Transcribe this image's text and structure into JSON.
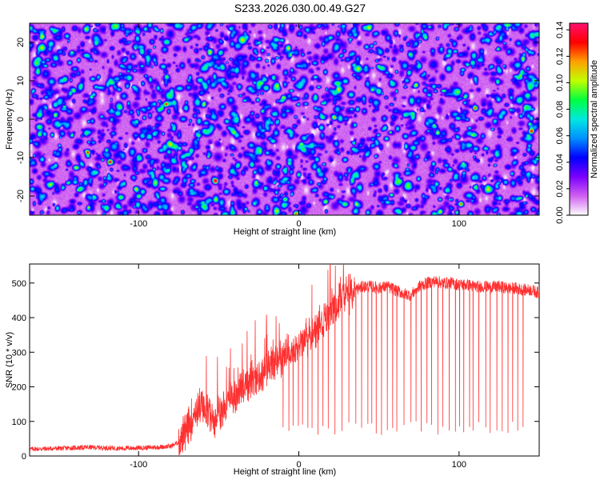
{
  "title": "S233.2026.030.00.49.G27",
  "chart_data": [
    {
      "type": "heatmap",
      "description_kind": "spectrogram",
      "xlabel": "Height of straight line (km)",
      "ylabel": "Frequency (Hz)",
      "xlim": [
        -168,
        150
      ],
      "ylim": [
        -25,
        25
      ],
      "xticks": [
        -100,
        0,
        100
      ],
      "xtick_labels": [
        "-100",
        "0",
        "100"
      ],
      "yticks": [
        -20,
        -10,
        0,
        10,
        20
      ],
      "ytick_labels": [
        "-20",
        "-10",
        "0",
        "10",
        "20"
      ],
      "colorbar": {
        "label": "Normalized spectral amplitude",
        "range": [
          0.0,
          0.145
        ],
        "ticks": [
          0.0,
          0.02,
          0.04,
          0.06,
          0.08,
          0.1,
          0.12,
          0.14
        ],
        "tick_labels": [
          "0.00",
          "0.02",
          "0.04",
          "0.06",
          "0.08",
          "0.10",
          "0.12",
          "0.14"
        ],
        "colors": [
          "#ffffff",
          "#d060f0",
          "#7a00ff",
          "#0000ff",
          "#0090ff",
          "#00e8e0",
          "#00ff40",
          "#c0ff00",
          "#ffa000",
          "#ff0000",
          "#ff1070"
        ]
      },
      "background_level": 0.02,
      "hot_spots": [
        {
          "x": -170,
          "y": 5,
          "v": 0.08
        },
        {
          "x": -165,
          "y": 23,
          "v": 0.06
        },
        {
          "x": -162,
          "y": -4,
          "v": 0.07
        },
        {
          "x": -132,
          "y": -8.5,
          "v": 0.12
        },
        {
          "x": -118,
          "y": -11,
          "v": 0.13
        },
        {
          "x": -100,
          "y": -20,
          "v": 0.09
        },
        {
          "x": -83,
          "y": 4,
          "v": 0.12
        },
        {
          "x": -52,
          "y": -16,
          "v": 0.13
        },
        {
          "x": -2,
          "y": -24.5,
          "v": 0.12
        },
        {
          "x": 22,
          "y": 0.5,
          "v": 0.1
        },
        {
          "x": 73,
          "y": 9,
          "v": 0.1
        },
        {
          "x": 88,
          "y": -24,
          "v": 0.09
        },
        {
          "x": 101,
          "y": -22,
          "v": 0.12
        },
        {
          "x": 110,
          "y": 3,
          "v": 0.12
        },
        {
          "x": 145,
          "y": -3,
          "v": 0.12
        }
      ]
    },
    {
      "type": "line",
      "xlabel": "Height of straight line (km)",
      "ylabel": "SNR (10 * v/v)",
      "xlim": [
        -168,
        150
      ],
      "ylim": [
        0,
        555
      ],
      "xticks": [
        -100,
        0,
        100
      ],
      "xtick_labels": [
        "-100",
        "0",
        "100"
      ],
      "yticks": [
        0,
        100,
        200,
        300,
        400,
        500
      ],
      "ytick_labels": [
        "0",
        "100",
        "200",
        "300",
        "400",
        "500"
      ],
      "color": "#ff3030",
      "series": [
        {
          "name": "SNR",
          "x": [
            -168,
            -150,
            -130,
            -110,
            -90,
            -80,
            -75,
            -70,
            -65,
            -60,
            -55,
            -50,
            -45,
            -40,
            -35,
            -30,
            -25,
            -20,
            -15,
            -10,
            -5,
            0,
            5,
            10,
            15,
            20,
            25,
            30,
            35,
            40,
            45,
            50,
            55,
            60,
            65,
            70,
            75,
            80,
            85,
            90,
            95,
            100,
            105,
            110,
            115,
            120,
            125,
            130,
            135,
            140,
            145,
            150
          ],
          "values": [
            20,
            22,
            25,
            22,
            25,
            28,
            40,
            70,
            130,
            150,
            110,
            120,
            145,
            170,
            200,
            220,
            230,
            250,
            270,
            285,
            300,
            320,
            340,
            360,
            390,
            420,
            450,
            470,
            480,
            490,
            490,
            485,
            490,
            480,
            470,
            465,
            490,
            500,
            505,
            500,
            500,
            495,
            495,
            490,
            490,
            488,
            490,
            485,
            485,
            480,
            480,
            470
          ]
        }
      ],
      "noise_amplitude": 35,
      "dropouts": {
        "x_start": -10,
        "x_end": 140,
        "spacing": 3,
        "floors": [
          60,
          100
        ]
      }
    }
  ]
}
